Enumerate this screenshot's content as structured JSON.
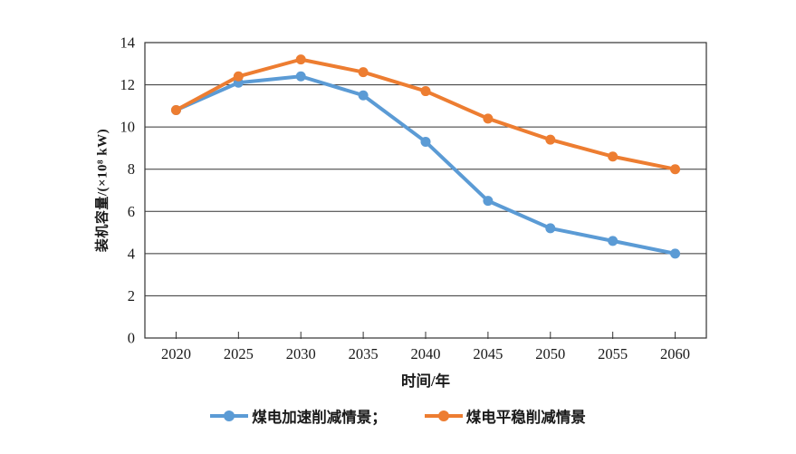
{
  "chart_data": {
    "type": "line",
    "categories": [
      "2020",
      "2025",
      "2030",
      "2035",
      "2040",
      "2045",
      "2050",
      "2055",
      "2060"
    ],
    "series": [
      {
        "name": "煤电加速削减情景",
        "color": "#5B9BD5",
        "values": [
          10.8,
          12.1,
          12.4,
          11.5,
          9.3,
          6.5,
          5.2,
          4.6,
          4.0
        ]
      },
      {
        "name": "煤电平稳削减情景",
        "color": "#ED7D31",
        "values": [
          10.8,
          12.4,
          13.2,
          12.6,
          11.7,
          10.4,
          9.4,
          8.6,
          8.0
        ]
      }
    ],
    "title": "",
    "xlabel": "时间/年",
    "ylabel": "装机容量/(×10⁸ kW)",
    "ylim": [
      0,
      14
    ],
    "y_ticks": [
      0,
      2,
      4,
      6,
      8,
      10,
      12,
      14
    ],
    "grid": "horizontal",
    "plot_border": true,
    "marker": "circle",
    "legend_position": "bottom",
    "axis_color": "#333333"
  },
  "axes": {
    "x_title": "时间/年",
    "y_title": "装机容量/(×10⁸ kW)"
  },
  "legend": {
    "items": [
      {
        "label": "煤电加速削减情景；",
        "color": "#5B9BD5"
      },
      {
        "label": "煤电平稳削减情景",
        "color": "#ED7D31"
      }
    ]
  }
}
